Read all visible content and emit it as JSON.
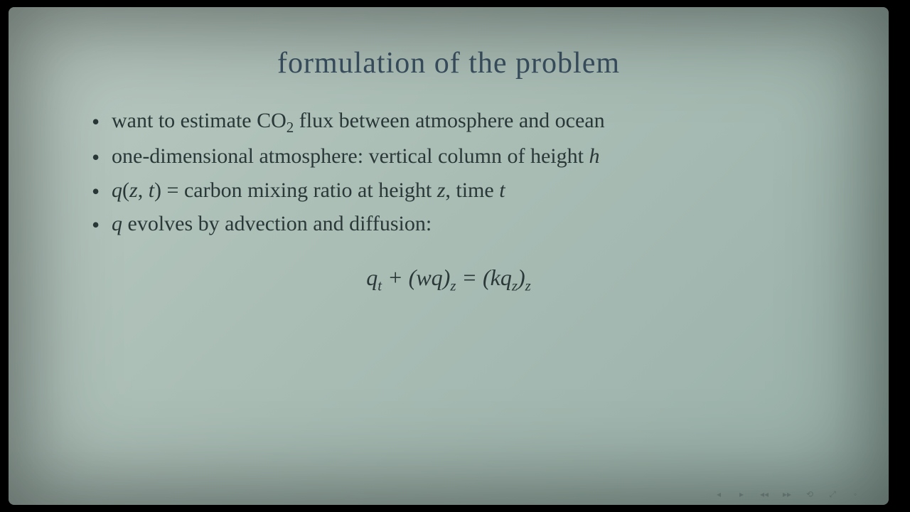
{
  "slide": {
    "title": "formulation of the problem",
    "bullets": [
      {
        "pre": "want to estimate CO",
        "sub": "2",
        "post": " flux between atmosphere and ocean"
      },
      {
        "pre": "one-dimensional atmosphere: vertical column of height ",
        "italic_end": "h"
      },
      {
        "italic_start": "q",
        "paren_open": "(",
        "var1": "z",
        "comma": ", ",
        "var2": "t",
        "paren_close": ")",
        "equals": " = carbon mixing ratio at height ",
        "var3": "z",
        "comma2": ", time ",
        "var4": "t"
      },
      {
        "italic_start": "q",
        "post": " evolves by advection and diffusion:"
      }
    ],
    "equation": {
      "q": "q",
      "t": "t",
      "plus": " + (",
      "wq": "wq",
      "close1": ")",
      "z1": "z",
      "eq": " = (",
      "k": "k",
      "q2": "q",
      "z2": "z",
      "close2": ")",
      "z3": "z"
    }
  },
  "colors": {
    "background": "#000000",
    "slide_bg_start": "#b8c8c0",
    "slide_bg_end": "#98b0a8",
    "title_color": "#3a5060",
    "text_color": "#2a3838"
  },
  "typography": {
    "title_fontsize": 42,
    "body_fontsize": 30,
    "equation_fontsize": 32,
    "font_family": "Georgia, Times New Roman, serif"
  },
  "nav_icons": [
    "◂",
    "▸",
    "◂◂",
    "▸▸",
    "⟲",
    "⤢",
    "◦"
  ]
}
